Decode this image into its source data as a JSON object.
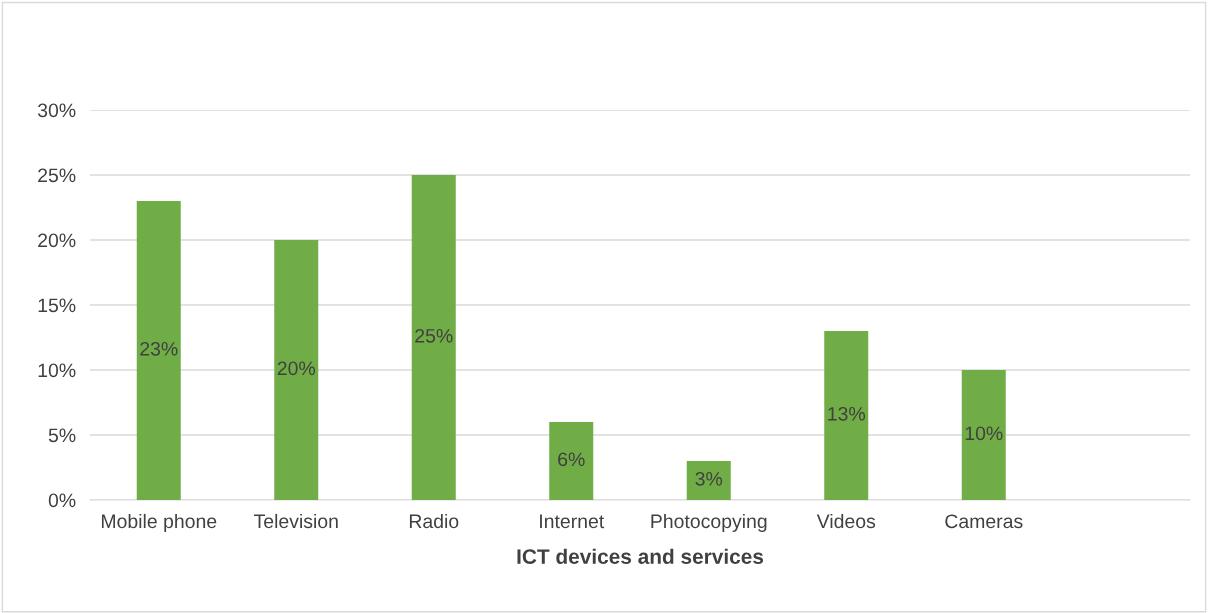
{
  "chart_data": {
    "type": "bar",
    "xlabel": "ICT devices and services",
    "categories": [
      "Mobile phone",
      "Television",
      "Radio",
      "Internet",
      "Photocopying",
      "Videos",
      "Cameras",
      null
    ],
    "values": [
      23,
      20,
      25,
      6,
      3,
      13,
      10,
      null
    ],
    "value_labels": [
      "23%",
      "20%",
      "25%",
      "6%",
      "3%",
      "13%",
      "10%",
      null
    ],
    "color": "#70ad47",
    "ylim": [
      0,
      30
    ],
    "yticks": [
      {
        "value": 0,
        "label": "0%"
      },
      {
        "value": 5,
        "label": "5%"
      },
      {
        "value": 10,
        "label": "10%"
      },
      {
        "value": 15,
        "label": "15%"
      },
      {
        "value": 20,
        "label": "20%"
      },
      {
        "value": 25,
        "label": "25%"
      },
      {
        "value": 30,
        "label": "30%"
      }
    ],
    "grid": "y"
  }
}
